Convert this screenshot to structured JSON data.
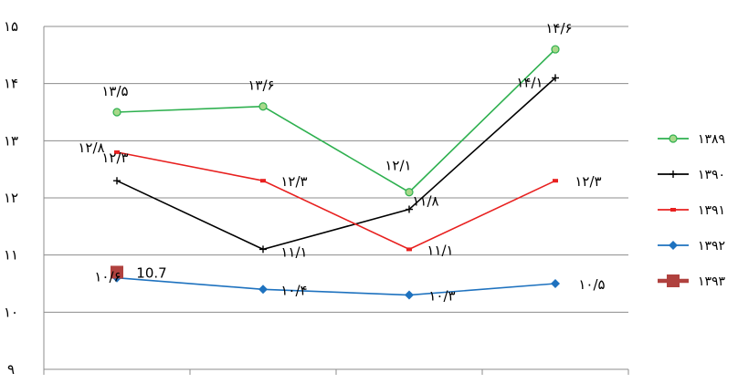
{
  "chart_data": {
    "type": "line",
    "title": "",
    "xlabel": "",
    "ylabel": "",
    "ylim": [
      9,
      15
    ],
    "yticks": [
      "۹",
      "۱۰",
      "۱۱",
      "۱۲",
      "۱۳",
      "۱۴",
      "۱۵"
    ],
    "grid": true,
    "legend_position": "right",
    "categories": [
      "",
      "",
      "",
      ""
    ],
    "series": [
      {
        "name": "۱۳۸۹",
        "color": "#2eb04f",
        "marker": "circle",
        "values": [
          13.5,
          13.6,
          12.1,
          14.6
        ],
        "labels": [
          "۱۳/۵",
          "۱۳/۶",
          "۱۲/۱",
          "۱۴/۶"
        ]
      },
      {
        "name": "۱۳۹۰",
        "color": "#000000",
        "marker": "plus",
        "values": [
          12.3,
          11.1,
          11.8,
          14.1
        ],
        "labels": [
          "۱۲/۳",
          "۱۱/۱",
          "۱۱/۸",
          "۱۴/۱"
        ]
      },
      {
        "name": "۱۳۹۱",
        "color": "#e8201f",
        "marker": "dash",
        "values": [
          12.8,
          12.3,
          11.1,
          12.3
        ],
        "labels": [
          "۱۲/۸",
          "۱۲/۳",
          "۱۱/۱",
          "۱۲/۳"
        ]
      },
      {
        "name": "۱۳۹۲",
        "color": "#1e72bf",
        "marker": "diamond",
        "values": [
          10.6,
          10.4,
          10.3,
          10.5
        ],
        "labels": [
          "۱۰/۶",
          "۱۰/۴",
          "۱۰/۳",
          "۱۰/۵"
        ]
      },
      {
        "name": "۱۳۹۳",
        "color": "#b0413e",
        "marker": "square",
        "values": [
          10.7,
          null,
          null,
          null
        ],
        "labels": [
          "10.7",
          "",
          "",
          ""
        ]
      }
    ]
  }
}
